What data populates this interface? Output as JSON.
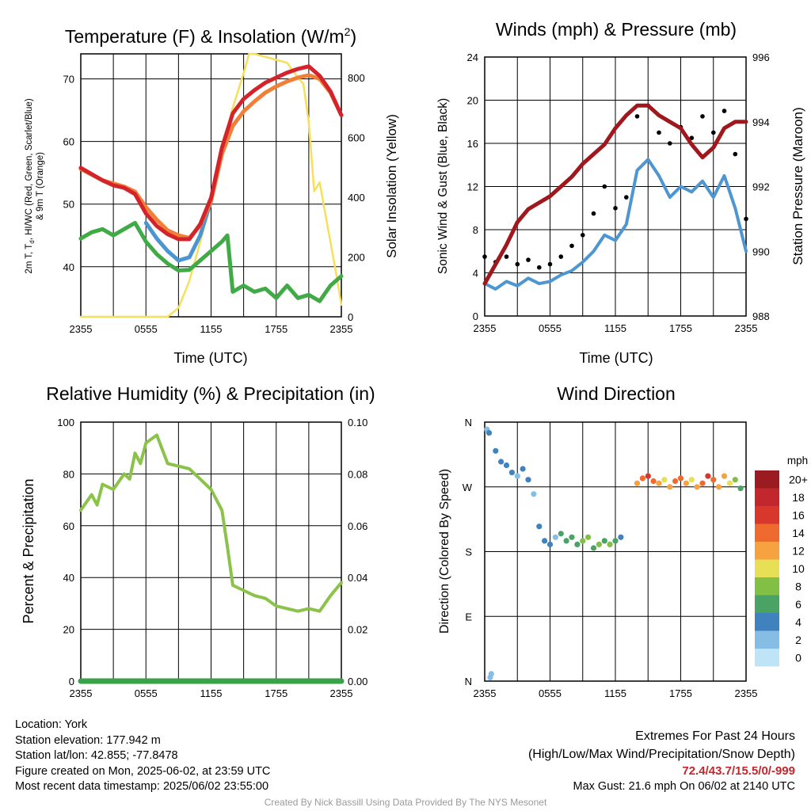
{
  "panels": {
    "temperature": {
      "title_main": "Temperature (F) & Insolation (W/m",
      "title_sup": "2",
      "title_end": ")",
      "ylabel_left": [
        "2m T, T",
        "d",
        ", HI/WC (Red, Green, Scarlet/Blue)",
        "& 9m T (Orange)"
      ],
      "ylabel_right": "Solar Insolation (Yellow)",
      "xlabel": "Time (UTC)"
    },
    "winds": {
      "title": "Winds (mph) & Pressure (mb)",
      "ylabel_left": "Sonic Wind & Gust (Blue, Black)",
      "ylabel_right": "Station Pressure (Maroon)",
      "xlabel": "Time (UTC)"
    },
    "humidity": {
      "title": "Relative Humidity (%) & Precipitation (in)",
      "ylabel_left": "Percent & Precipitation"
    },
    "direction": {
      "title": "Wind Direction",
      "ylabel_left": "Direction (Colored By Speed)",
      "colorbar_title": "mph",
      "colorbar_labels": [
        "20+",
        "18",
        "16",
        "14",
        "12",
        "10",
        "8",
        "6",
        "4",
        "2",
        "0"
      ],
      "colorbar_colors": [
        "#9b1c20",
        "#c1272d",
        "#d8382b",
        "#ef6a2f",
        "#f7a240",
        "#e7df55",
        "#82bf45",
        "#4aa265",
        "#3f82be",
        "#86bde4",
        "#bfe4f7"
      ]
    }
  },
  "chart_data": [
    {
      "type": "line",
      "title": "Temperature (F) & Insolation (W/m2)",
      "xlabel": "Time (UTC)",
      "x_tick_labels": [
        "2355",
        "0555",
        "1155",
        "1755",
        "2355"
      ],
      "x_unit": "hours since 2355 UTC",
      "xlim": [
        0,
        24
      ],
      "ylim": [
        32,
        74
      ],
      "y_ticks": [
        40,
        50,
        60,
        70
      ],
      "ylim_right": [
        0,
        880
      ],
      "y_ticks_right": [
        0,
        200,
        400,
        600,
        800
      ],
      "colors": {
        "temperature": "#d4242b",
        "temp_9m": "#f17f36",
        "dewpoint": "#40ab46",
        "windchill": "#4c95d0",
        "insolation": "#f6e05a"
      },
      "series": [
        {
          "name": "2m T",
          "axis": "left",
          "x": [
            0,
            1,
            2,
            3,
            4,
            5,
            6,
            7,
            8,
            9,
            10,
            11,
            12,
            13,
            14,
            15,
            16,
            17,
            18,
            19,
            20,
            21,
            22,
            23,
            24
          ],
          "values": [
            55.8,
            54.8,
            53.8,
            53.0,
            52.6,
            51.6,
            48.5,
            46.5,
            45.2,
            44.4,
            44.4,
            46.8,
            51.0,
            59.0,
            64.5,
            66.8,
            68.2,
            69.4,
            70.2,
            71.0,
            71.6,
            72.0,
            70.5,
            68.0,
            64.2
          ]
        },
        {
          "name": "9m T",
          "axis": "left",
          "x": [
            0,
            2,
            4,
            5,
            6,
            7,
            8,
            9,
            10,
            11,
            12,
            13,
            14,
            15,
            16,
            17,
            18,
            19,
            20,
            21,
            22,
            23,
            24
          ],
          "values": [
            55.6,
            53.8,
            52.8,
            52.0,
            49.5,
            47.5,
            45.8,
            45.0,
            44.6,
            46.6,
            50.5,
            58.0,
            62.5,
            64.8,
            66.4,
            67.8,
            68.8,
            69.6,
            70.2,
            70.6,
            70.0,
            67.8,
            64.2
          ]
        },
        {
          "name": "2m Td",
          "axis": "left",
          "x": [
            0,
            1,
            2,
            3,
            4,
            5,
            6,
            7,
            8,
            9,
            10,
            11,
            12,
            13,
            13.5,
            14,
            15,
            16,
            17,
            18,
            19,
            20,
            21,
            22,
            23,
            24
          ],
          "values": [
            44.5,
            45.5,
            46.0,
            45.0,
            46.0,
            47.0,
            44.0,
            42.0,
            40.5,
            39.4,
            39.5,
            41.0,
            42.5,
            44.0,
            45.0,
            36.0,
            37.0,
            36.0,
            36.5,
            35.0,
            37.0,
            35.0,
            35.5,
            34.5,
            37.0,
            38.5
          ]
        },
        {
          "name": "HI/WC",
          "axis": "left",
          "x": [
            6,
            7,
            8,
            9,
            10,
            11,
            12
          ],
          "values": [
            47.0,
            44.5,
            42.5,
            41.0,
            41.5,
            45.0,
            50.5
          ]
        },
        {
          "name": "Solar Insolation",
          "axis": "right",
          "x": [
            0,
            8,
            9,
            10,
            11,
            12,
            13,
            14,
            15,
            15.5,
            16,
            17,
            18,
            19,
            20,
            20.5,
            21,
            21.5,
            22,
            22.5,
            23,
            23.5,
            24
          ],
          "values": [
            0,
            0,
            30,
            120,
            250,
            390,
            560,
            700,
            815,
            880,
            880,
            870,
            860,
            850,
            800,
            780,
            650,
            420,
            450,
            350,
            250,
            150,
            40
          ]
        }
      ]
    },
    {
      "type": "line",
      "title": "Winds (mph) & Pressure (mb)",
      "xlabel": "Time (UTC)",
      "x_tick_labels": [
        "2355",
        "0555",
        "1155",
        "1755",
        "2355"
      ],
      "x_unit": "hours since 2355 UTC",
      "xlim": [
        0,
        24
      ],
      "ylim": [
        0,
        24
      ],
      "y_ticks": [
        0,
        4,
        8,
        12,
        16,
        20,
        24
      ],
      "ylim_right": [
        988,
        996
      ],
      "y_ticks_right": [
        988,
        990,
        992,
        994,
        996
      ],
      "colors": {
        "wind": "#4e96d2",
        "gust": "#000000",
        "pressure": "#a0181d"
      },
      "series": [
        {
          "name": "Sonic Wind",
          "axis": "left",
          "x": [
            0,
            1,
            2,
            3,
            4,
            5,
            6,
            7,
            8,
            9,
            10,
            11,
            12,
            13,
            14,
            15,
            16,
            17,
            18,
            19,
            20,
            21,
            22,
            23,
            24
          ],
          "values": [
            3.0,
            2.5,
            3.2,
            2.8,
            3.5,
            3.0,
            3.2,
            3.8,
            4.2,
            5.0,
            6.0,
            7.5,
            7.0,
            8.5,
            13.5,
            14.5,
            13.0,
            11.0,
            12.0,
            11.5,
            12.5,
            11.0,
            13.0,
            10.0,
            6.0
          ]
        },
        {
          "name": "Gust",
          "axis": "left",
          "x": [
            0,
            1,
            2,
            3,
            4,
            5,
            6,
            7,
            8,
            9,
            10,
            11,
            12,
            13,
            14,
            15,
            16,
            17,
            18,
            19,
            20,
            21,
            22,
            23,
            24
          ],
          "values": [
            5.5,
            5.0,
            5.5,
            4.8,
            5.2,
            4.5,
            4.8,
            5.5,
            6.5,
            7.5,
            9.5,
            12.0,
            10.0,
            11.0,
            18.5,
            19.5,
            17.0,
            16.0,
            17.5,
            16.5,
            18.5,
            17.0,
            19.0,
            15.0,
            9.0
          ]
        },
        {
          "name": "Station Pressure",
          "axis": "right",
          "x": [
            0,
            1,
            2,
            3,
            4,
            5,
            6,
            7,
            8,
            9,
            10,
            11,
            12,
            13,
            14,
            15,
            16,
            17,
            18,
            19,
            20,
            21,
            22,
            23,
            24
          ],
          "values": [
            989.0,
            989.6,
            990.2,
            990.9,
            991.3,
            991.5,
            991.7,
            992.0,
            992.3,
            992.7,
            993.0,
            993.3,
            993.8,
            994.2,
            994.5,
            994.5,
            994.2,
            994.0,
            993.8,
            993.3,
            992.9,
            993.2,
            993.8,
            994.0,
            994.0
          ]
        }
      ]
    },
    {
      "type": "line",
      "title": "Relative Humidity (%) & Precipitation (in)",
      "x_tick_labels": [
        "2355",
        "0555",
        "1155",
        "1755",
        "2355"
      ],
      "x_unit": "hours since 2355 UTC",
      "xlim": [
        0,
        24
      ],
      "ylim": [
        0,
        100
      ],
      "y_ticks": [
        0,
        20,
        40,
        60,
        80,
        100
      ],
      "ylim_right": [
        0,
        0.1
      ],
      "y_ticks_right": [
        "0.00",
        "0.02",
        "0.04",
        "0.06",
        "0.08",
        "0.10"
      ],
      "colors": {
        "rh": "#8bc34a",
        "precip": "#3aa34a"
      },
      "series": [
        {
          "name": "Relative Humidity",
          "axis": "left",
          "x": [
            0,
            1,
            1.5,
            2,
            3,
            4,
            4.5,
            5,
            5.5,
            6,
            7,
            8,
            9,
            10,
            11,
            12,
            13,
            13.5,
            14,
            15,
            16,
            17,
            18,
            19,
            20,
            21,
            22,
            23,
            24
          ],
          "values": [
            66,
            72,
            68,
            76,
            74,
            80,
            78,
            88,
            84,
            92,
            95,
            84,
            83,
            82,
            78,
            74,
            66,
            52,
            37,
            35,
            33,
            32,
            29,
            28,
            27,
            28,
            27,
            33,
            38
          ]
        },
        {
          "name": "Precipitation",
          "axis": "right",
          "x": [
            0,
            24
          ],
          "values": [
            0,
            0
          ]
        }
      ]
    },
    {
      "type": "scatter",
      "title": "Wind Direction",
      "x_tick_labels": [
        "2355",
        "0555",
        "1155",
        "1755",
        "2355"
      ],
      "x_unit": "hours since 2355 UTC",
      "xlim": [
        0,
        24
      ],
      "y_tick_labels": [
        "N",
        "E",
        "S",
        "W",
        "N"
      ],
      "y_unit": "degrees",
      "ylim": [
        0,
        360
      ],
      "colorbar_label": "mph",
      "series": [
        {
          "name": "Wind Direction",
          "x": [
            0.2,
            0.4,
            0.6,
            0.5,
            1.0,
            1.5,
            2.0,
            2.5,
            3.0,
            3.5,
            4.0,
            4.5,
            5.0,
            5.5,
            6.0,
            6.5,
            7.0,
            7.5,
            8.0,
            8.5,
            9.0,
            9.5,
            10.0,
            10.5,
            11.0,
            11.5,
            12.0,
            12.5,
            14.0,
            14.5,
            15.0,
            15.5,
            16.0,
            16.5,
            17.0,
            17.5,
            18.0,
            18.5,
            19.0,
            19.5,
            20.0,
            20.5,
            21.0,
            21.5,
            22.0,
            22.5,
            23.0,
            23.5
          ],
          "values": [
            350,
            345,
            10,
            5,
            320,
            305,
            300,
            290,
            285,
            295,
            280,
            260,
            215,
            195,
            190,
            200,
            205,
            195,
            200,
            190,
            195,
            200,
            185,
            190,
            195,
            190,
            195,
            200,
            275,
            282,
            285,
            278,
            275,
            280,
            270,
            278,
            282,
            275,
            280,
            270,
            275,
            285,
            280,
            270,
            285,
            275,
            280,
            268
          ],
          "speeds": [
            2,
            3,
            2,
            1,
            4,
            3,
            4,
            3,
            2,
            4,
            3,
            2,
            4,
            3,
            4,
            2,
            5,
            6,
            6,
            5,
            8,
            7,
            6,
            7,
            6,
            7,
            5,
            4,
            12,
            14,
            16,
            14,
            12,
            10,
            12,
            14,
            13,
            11,
            9,
            12,
            14,
            16,
            14,
            12,
            11,
            10,
            8,
            6
          ]
        }
      ]
    }
  ],
  "footer": {
    "location": "Location: York",
    "elevation": "Station elevation: 177.942 m",
    "latlon": "Station lat/lon: 42.855; -77.8478",
    "created": "Figure created on Mon, 2025-06-02, at 23:59 UTC",
    "recent": "Most recent data timestamp: 2025/06/02 23:55:00",
    "extremes_title": "Extremes For Past 24 Hours",
    "extremes_legend": "(High/Low/Max Wind/Precipitation/Snow Depth)",
    "extremes_values": "72.4/43.7/15.5/0/-999",
    "max_gust": "Max Gust: 21.6 mph On 06/02 at 2140 UTC",
    "credit": "Created By Nick Bassill Using Data Provided By The NYS Mesonet"
  }
}
